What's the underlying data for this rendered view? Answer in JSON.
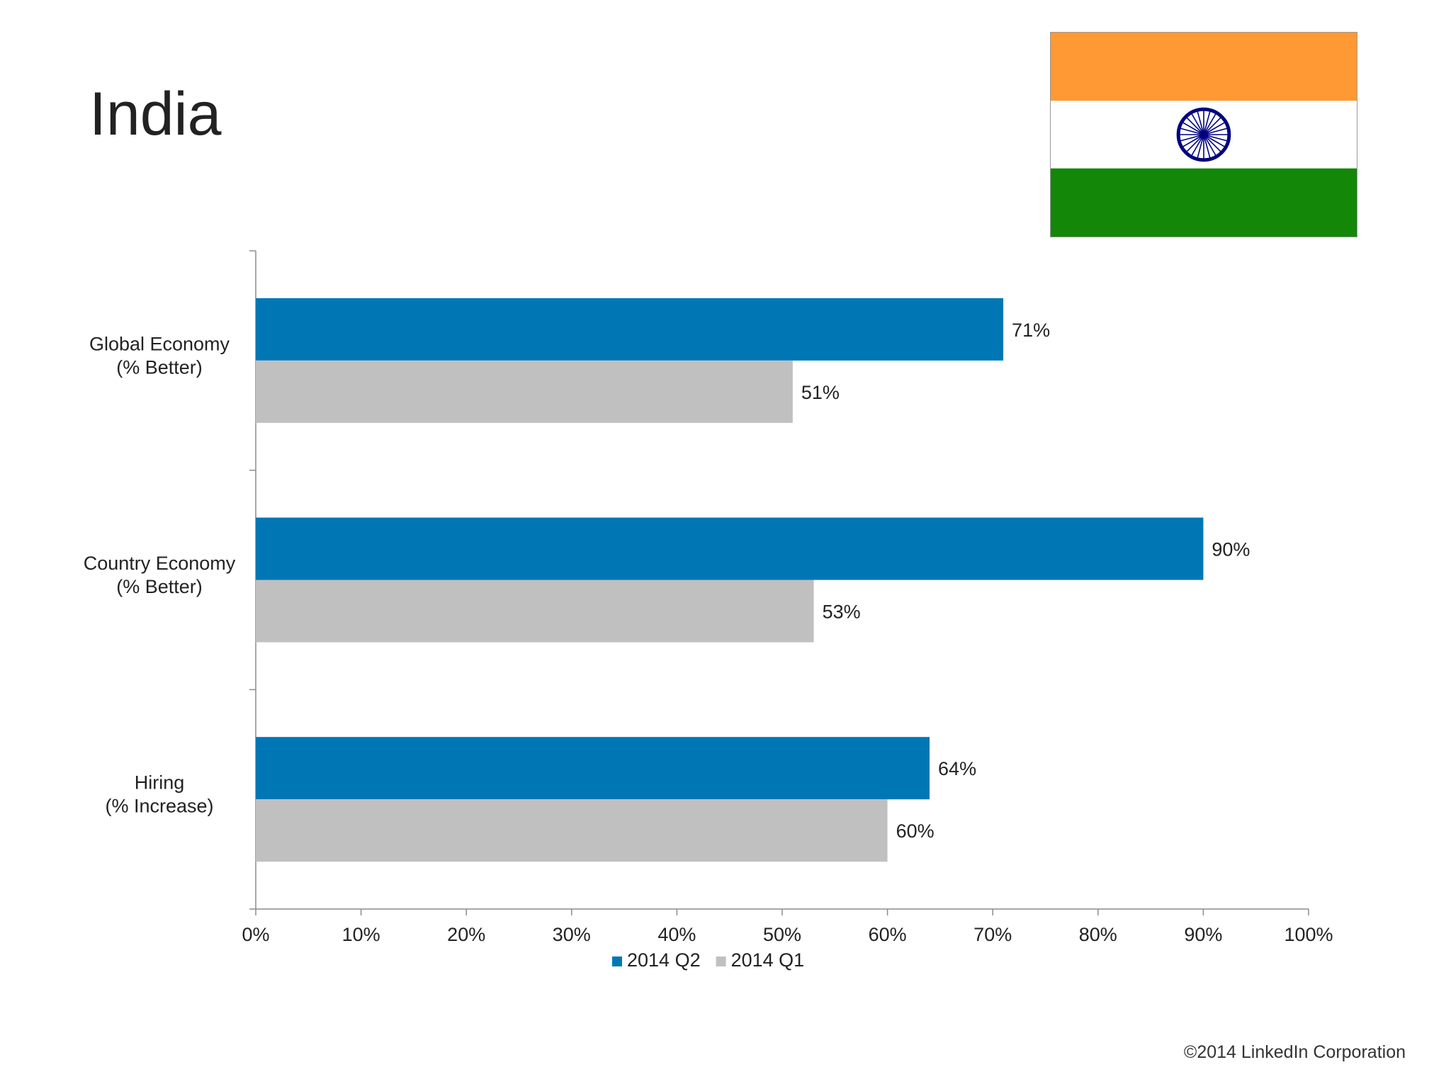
{
  "page": {
    "title": "India",
    "copyright": "©2014 LinkedIn Corporation"
  },
  "flag": {
    "colors": {
      "saffron": "#ff9933",
      "white": "#ffffff",
      "green": "#138808",
      "chakra": "#000080"
    }
  },
  "chart_data": {
    "type": "bar",
    "orientation": "horizontal",
    "title": "",
    "xlabel": "",
    "ylabel": "",
    "categories": [
      [
        "Global Economy",
        "(% Better)"
      ],
      [
        "Country Economy",
        "(% Better)"
      ],
      [
        "Hiring",
        "(% Increase)"
      ]
    ],
    "series": [
      {
        "name": "2014 Q2",
        "color": "#0077b5",
        "values": [
          71,
          90,
          64
        ],
        "labels": [
          "71%",
          "90%",
          "64%"
        ]
      },
      {
        "name": "2014 Q1",
        "color": "#c0c0c1",
        "values": [
          51,
          53,
          60
        ],
        "labels": [
          "51%",
          "53%",
          "60%"
        ]
      }
    ],
    "xlim": [
      0,
      100
    ],
    "x_ticks": [
      "0%",
      "10%",
      "20%",
      "30%",
      "40%",
      "50%",
      "60%",
      "70%",
      "80%",
      "90%",
      "100%"
    ],
    "grid": false,
    "legend_position": "bottom"
  }
}
